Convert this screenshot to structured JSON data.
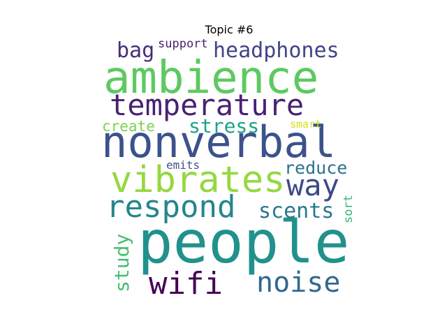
{
  "title": "Topic #6",
  "words": [
    {
      "text": "ambience",
      "color": "#5ec962"
    },
    {
      "text": "nonverbal",
      "color": "#3b528b"
    },
    {
      "text": "people",
      "color": "#21918c"
    },
    {
      "text": "temperature",
      "color": "#482173"
    },
    {
      "text": "vibrates",
      "color": "#95d840"
    },
    {
      "text": "respond",
      "color": "#25858e"
    },
    {
      "text": "way",
      "color": "#3e4989"
    },
    {
      "text": "wifi",
      "color": "#440154"
    },
    {
      "text": "noise",
      "color": "#31688e"
    },
    {
      "text": "headphones",
      "color": "#414487"
    },
    {
      "text": "bag",
      "color": "#472d7b"
    },
    {
      "text": "support",
      "color": "#481f70"
    },
    {
      "text": "stress",
      "color": "#20a386"
    },
    {
      "text": "create",
      "color": "#7ad151"
    },
    {
      "text": "smart",
      "color": "#d2e21b"
    },
    {
      "text": "reduce",
      "color": "#2c728e"
    },
    {
      "text": "scents",
      "color": "#2a788e"
    },
    {
      "text": "emits",
      "color": "#3b528b"
    },
    {
      "text": "study",
      "color": "#44bf70"
    },
    {
      "text": "sort",
      "color": "#35b779"
    }
  ]
}
